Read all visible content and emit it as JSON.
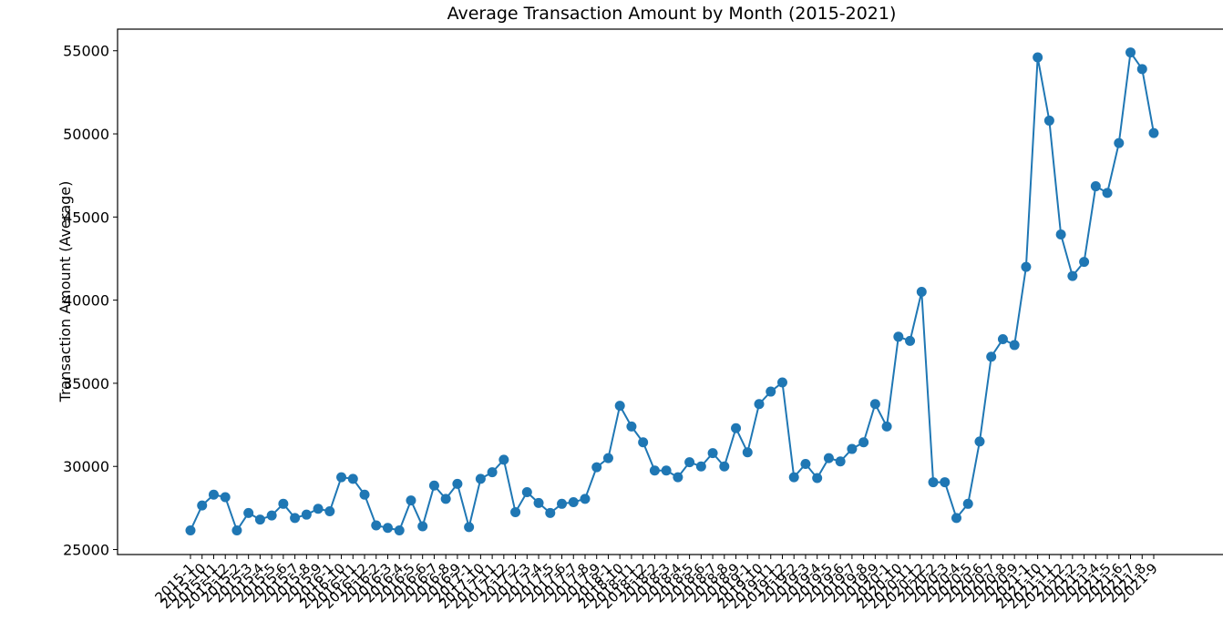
{
  "chart_data": {
    "type": "line",
    "title": "Average Transaction Amount by Month (2015-2021)",
    "xlabel": "",
    "ylabel": "Transaction Amount (Average)",
    "ylim": [
      24700,
      56300
    ],
    "yticks": [
      25000,
      30000,
      35000,
      40000,
      45000,
      50000,
      55000
    ],
    "grid": false,
    "legend": "none",
    "colors": {
      "line": "#1f77b4",
      "marker": "#1f77b4"
    },
    "categories": [
      "2015-1",
      "2015-10",
      "2015-11",
      "2015-12",
      "2015-2",
      "2015-3",
      "2015-4",
      "2015-5",
      "2015-6",
      "2015-7",
      "2015-8",
      "2015-9",
      "2016-1",
      "2016-10",
      "2016-11",
      "2016-12",
      "2016-2",
      "2016-3",
      "2016-4",
      "2016-5",
      "2016-6",
      "2016-7",
      "2016-8",
      "2016-9",
      "2017-1",
      "2017-10",
      "2017-11",
      "2017-12",
      "2017-2",
      "2017-3",
      "2017-4",
      "2017-5",
      "2017-6",
      "2017-7",
      "2017-8",
      "2017-9",
      "2018-1",
      "2018-10",
      "2018-11",
      "2018-12",
      "2018-2",
      "2018-3",
      "2018-4",
      "2018-5",
      "2018-6",
      "2018-7",
      "2018-8",
      "2018-9",
      "2019-1",
      "2019-10",
      "2019-11",
      "2019-12",
      "2019-2",
      "2019-3",
      "2019-4",
      "2019-5",
      "2019-6",
      "2019-7",
      "2019-8",
      "2019-9",
      "2020-1",
      "2020-10",
      "2020-11",
      "2020-12",
      "2020-2",
      "2020-3",
      "2020-4",
      "2020-5",
      "2020-6",
      "2020-7",
      "2020-8",
      "2020-9",
      "2021-1",
      "2021-10",
      "2021-11",
      "2021-12",
      "2021-2",
      "2021-3",
      "2021-4",
      "2021-5",
      "2021-6",
      "2021-7",
      "2021-8",
      "2021-9"
    ],
    "series": [
      {
        "values": [
          26150,
          27650,
          28300,
          28150,
          26150,
          27200,
          26800,
          27050,
          27750,
          26900,
          27100,
          27450,
          27300,
          29350,
          29250,
          28300,
          26450,
          26300,
          26150,
          27950,
          26400,
          28850,
          28050,
          28950,
          26350,
          29250,
          29650,
          30400,
          27250,
          28450,
          27800,
          27200,
          27750,
          27850,
          28050,
          29950,
          30500,
          33650,
          32400,
          31450,
          29750,
          29750,
          29350,
          30250,
          30000,
          30800,
          30000,
          32300,
          30850,
          33750,
          34500,
          35050,
          29350,
          30150,
          29300,
          30500,
          30300,
          31050,
          31450,
          33750,
          32400,
          37800,
          37550,
          40500,
          29050,
          29050,
          26900,
          27750,
          31500,
          36600,
          37650,
          37300,
          42000,
          54600,
          50800,
          43950,
          41450,
          42300,
          46850,
          46450,
          49450,
          54900,
          53900,
          50050
        ]
      }
    ]
  }
}
